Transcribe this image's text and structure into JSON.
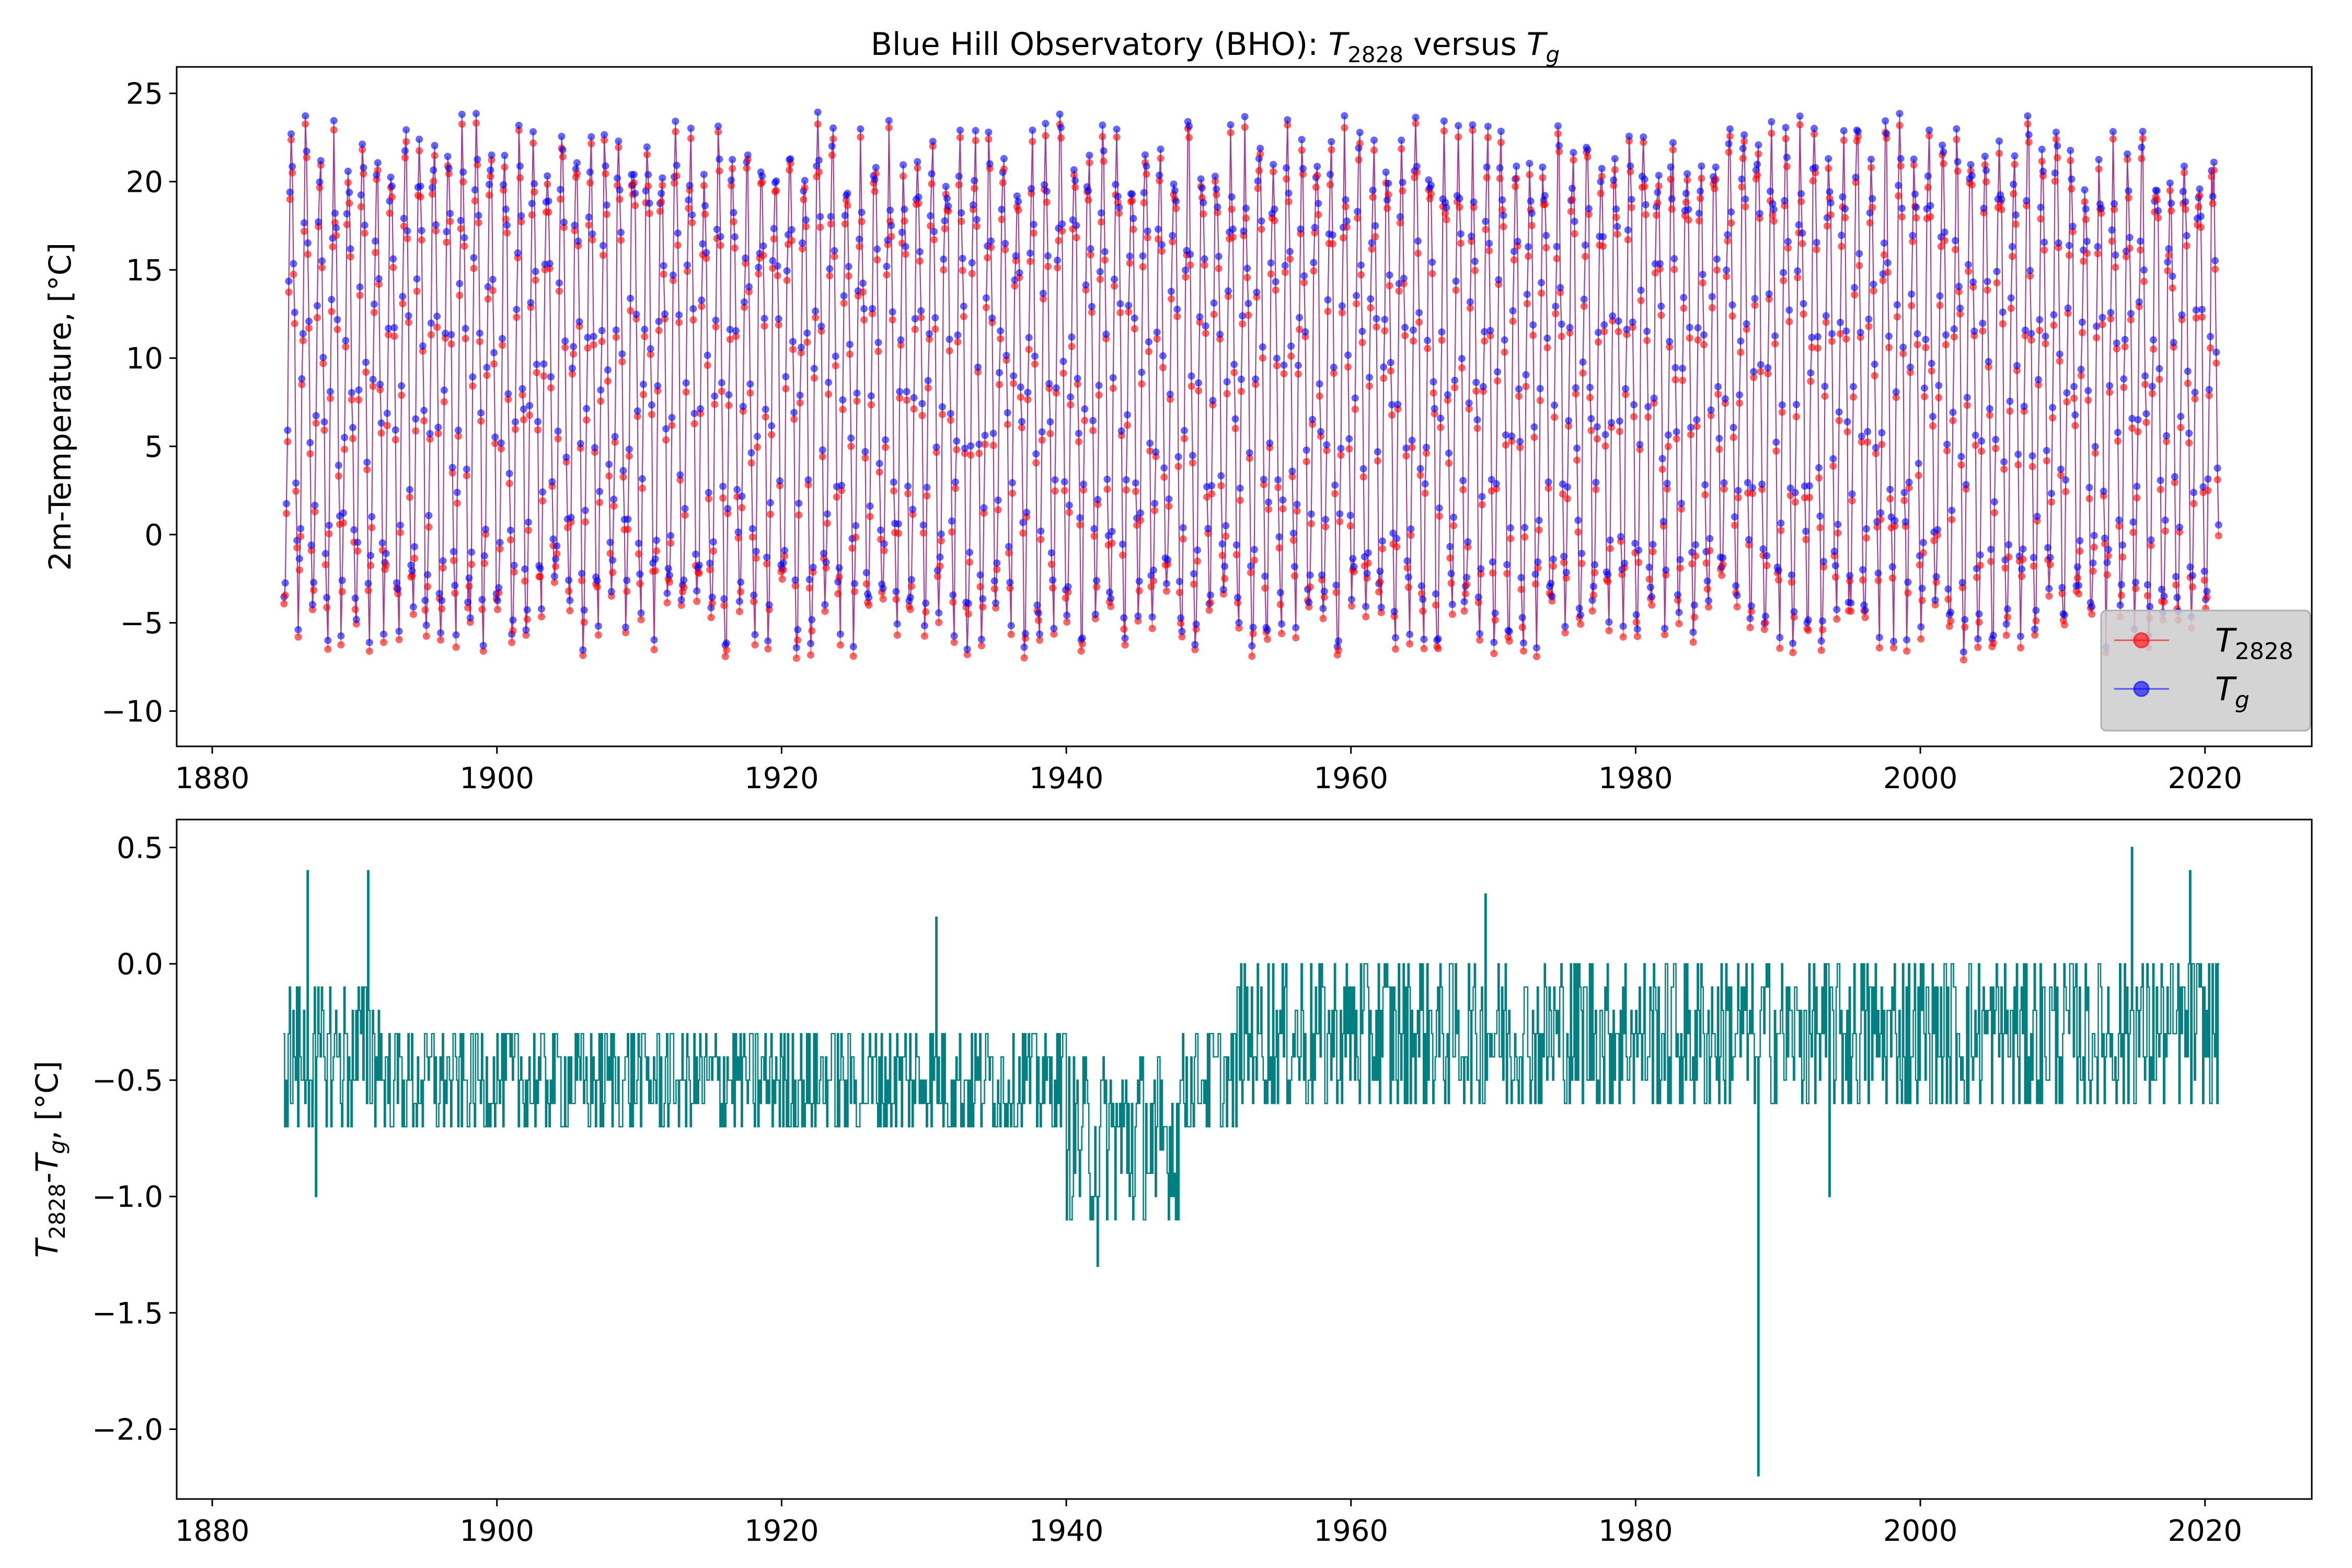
{
  "chart_data": [
    {
      "type": "line",
      "title": "Blue Hill Observatory (BHO): T2828 versus Tg",
      "ylabel": "2m-Temperature, [°C]",
      "xlim": [
        1877.5,
        2027.5
      ],
      "ylim": [
        -12,
        26.5
      ],
      "xticks": [
        1880,
        1900,
        1920,
        1940,
        1960,
        1980,
        2000,
        2020
      ],
      "yticks": [
        -10,
        -5,
        0,
        5,
        10,
        15,
        20,
        25
      ],
      "x_start": 1885.0,
      "x_end": 2021.0,
      "grid": false,
      "legend_position": "lower-right",
      "series": [
        {
          "name": "T2828",
          "color": "#ff0000",
          "monthly_climatology": [
            -4.7,
            -4.1,
            0.3,
            6.9,
            12.7,
            17.8,
            20.9,
            20.1,
            16.2,
            10.1,
            4.4,
            -1.9
          ],
          "jitter_range": 2.5
        },
        {
          "name": "Tg",
          "color": "#0000ff",
          "monthly_climatology": [
            -4.3,
            -3.7,
            0.7,
            7.3,
            13.1,
            18.2,
            21.3,
            20.5,
            16.6,
            10.5,
            4.8,
            -1.5
          ],
          "jitter_range": 2.5
        }
      ]
    },
    {
      "type": "line",
      "ylabel": "T2828-Tg, [°C]",
      "xlim": [
        1877.5,
        2027.5
      ],
      "ylim": [
        -2.3,
        0.62
      ],
      "xticks": [
        1880,
        1900,
        1920,
        1940,
        1960,
        1980,
        2000,
        2020
      ],
      "yticks": [
        -2.0,
        -1.5,
        -1.0,
        -0.5,
        0.0,
        0.5
      ],
      "grid": false,
      "series": [
        {
          "color": "#008080",
          "segments": [
            {
              "x_start": 1885.0,
              "x_end": 1892.0,
              "low": -0.7,
              "high": -0.1
            },
            {
              "x_start": 1892.0,
              "x_end": 1940.0,
              "low": -0.7,
              "high": -0.3
            },
            {
              "x_start": 1940.0,
              "x_end": 1948.0,
              "low": -1.1,
              "high": -0.4
            },
            {
              "x_start": 1948.0,
              "x_end": 1952.0,
              "low": -0.7,
              "high": -0.3
            },
            {
              "x_start": 1952.0,
              "x_end": 2021.0,
              "low": -0.6,
              "high": 0.0
            }
          ],
          "extremes": [
            {
              "x": 1886.7,
              "value": 0.4
            },
            {
              "x": 1887.3,
              "value": -1.0
            },
            {
              "x": 1891.0,
              "value": 0.4
            },
            {
              "x": 1930.9,
              "value": 0.2
            },
            {
              "x": 1942.2,
              "value": -1.3
            },
            {
              "x": 1946.3,
              "value": -1.0
            },
            {
              "x": 1969.5,
              "value": 0.3
            },
            {
              "x": 1988.6,
              "value": -2.2
            },
            {
              "x": 1993.6,
              "value": -1.0
            },
            {
              "x": 2014.9,
              "value": 0.5
            },
            {
              "x": 2019.0,
              "value": 0.4
            }
          ]
        }
      ]
    }
  ]
}
